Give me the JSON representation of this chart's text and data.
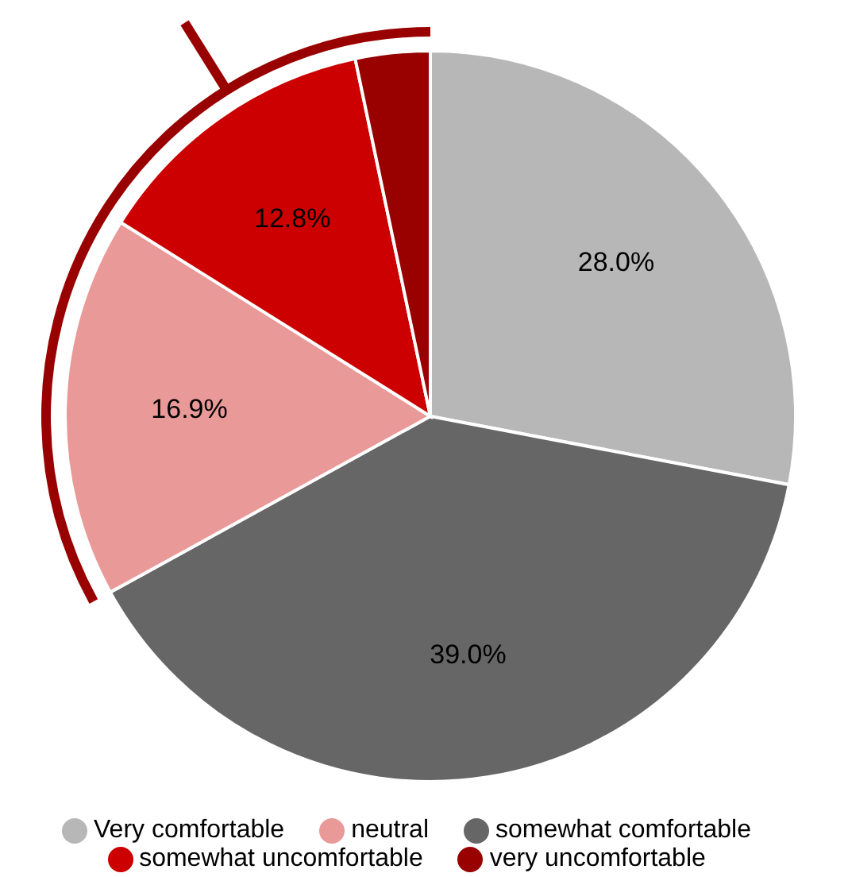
{
  "chart_data": {
    "type": "pie",
    "categories": [
      "Very comfortable",
      "somewhat comfortable",
      "neutral",
      "somewhat uncomfortable",
      "very uncomfortable"
    ],
    "values": [
      28.0,
      39.0,
      16.9,
      12.8,
      3.3
    ],
    "colors": [
      "#b7b7b7",
      "#666666",
      "#ea9999",
      "#cc0000",
      "#990000"
    ],
    "value_labels": [
      "28.0%",
      "39.0%",
      "16.9%",
      "12.8%",
      null
    ],
    "legend": "bottom"
  }
}
